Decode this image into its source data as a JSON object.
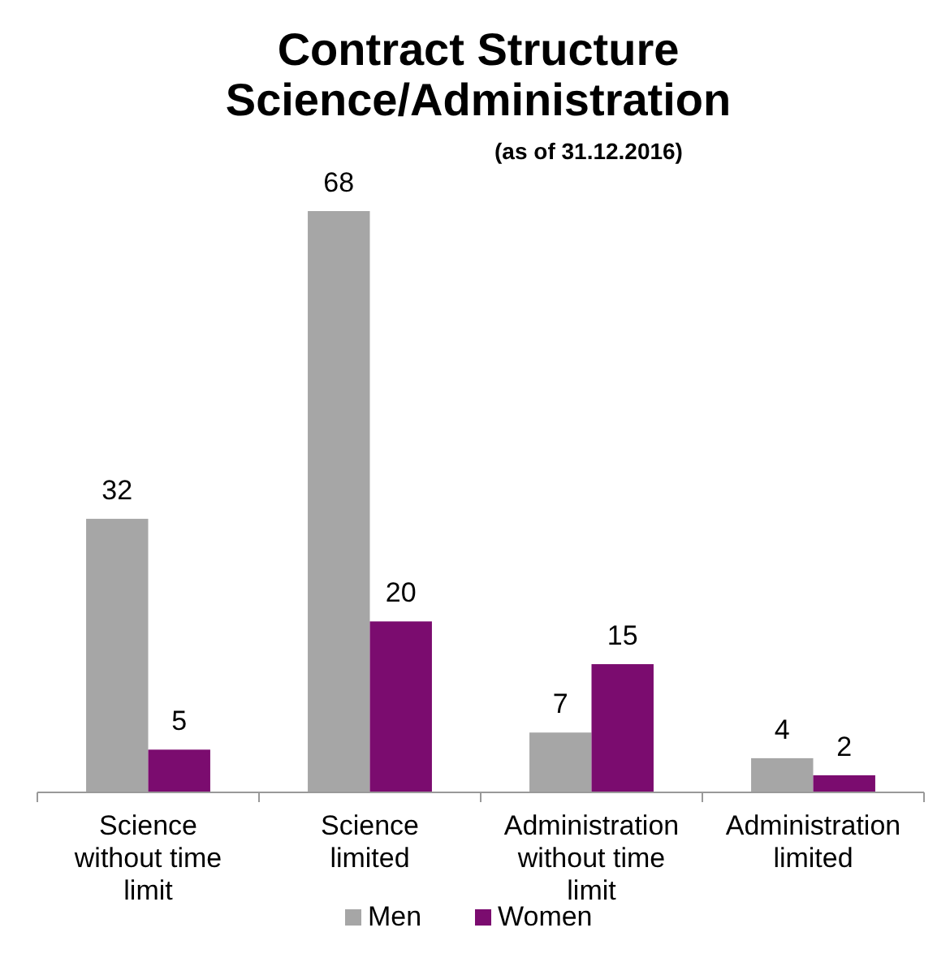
{
  "chart_data": {
    "type": "bar",
    "title": "Contract Structure Science/Administration",
    "subtitle": "(as of 31.12.2016)",
    "categories": [
      "Science without time limit",
      "Science limited",
      "Administration without time limit",
      "Administration limited"
    ],
    "series": [
      {
        "name": "Men",
        "color": "#a6a6a6",
        "values": [
          32,
          68,
          7,
          4
        ]
      },
      {
        "name": "Women",
        "color": "#7b0c6f",
        "values": [
          5,
          20,
          15,
          2
        ]
      }
    ],
    "data_labels": true,
    "legend": "bottom",
    "grid": false
  }
}
